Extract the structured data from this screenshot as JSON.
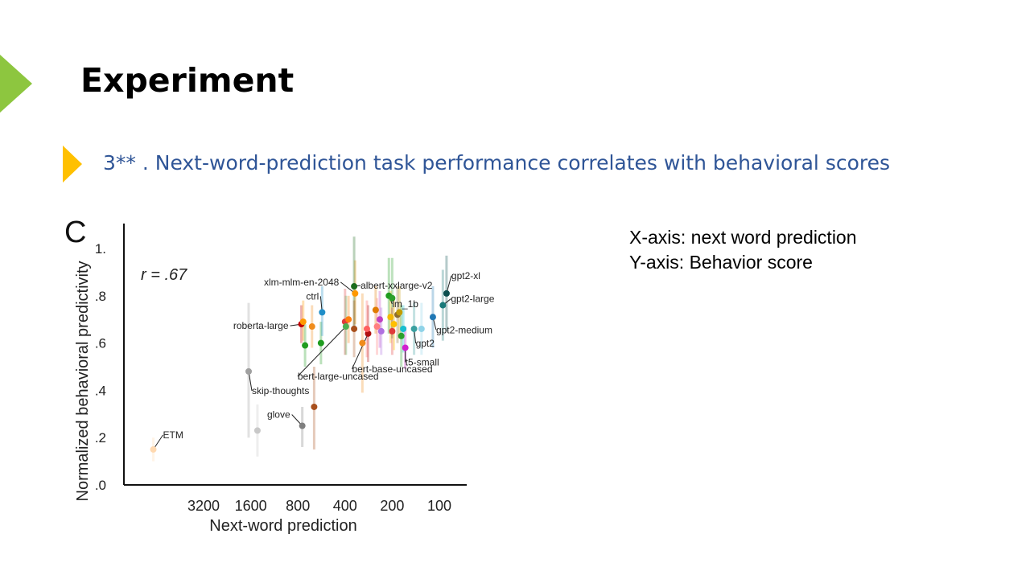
{
  "slide": {
    "title": "Experiment",
    "subtitle": "3** . Next-word-prediction task performance correlates with behavioral scores",
    "notes": [
      "X-axis: next word prediction",
      "Y-axis: Behavior score"
    ],
    "colors": {
      "marker_green": "#8dc63f",
      "bullet_yellow": "#ffc000",
      "subtitle_blue": "#2f5597"
    }
  },
  "chart_data": {
    "type": "scatter",
    "panel_label": "C",
    "annotation": "r = .67",
    "xlabel": "Next-word prediction",
    "ylabel": "Normalized behavioral predictivity",
    "x_scale": "log-reversed",
    "x_ticks": [
      3200,
      1600,
      800,
      400,
      200,
      100
    ],
    "x_tick_labels": [
      "3200",
      "1600",
      "800",
      "400",
      "200",
      "100"
    ],
    "ylim": [
      0,
      1.05
    ],
    "y_ticks": [
      0,
      0.2,
      0.4,
      0.6,
      0.8,
      1.0
    ],
    "y_tick_labels": [
      ".0",
      ".2",
      ".4",
      ".6",
      ".8",
      "1."
    ],
    "grid": false,
    "points": [
      {
        "name": "ETM",
        "x": 6700,
        "y": 0.15,
        "color": "#ffd9b0",
        "err": [
          0.1,
          0.2
        ]
      },
      {
        "name": "skip-thoughts",
        "x": 1650,
        "y": 0.48,
        "color": "#a0a0a0",
        "err": [
          0.2,
          0.77
        ]
      },
      {
        "name": "",
        "x": 1450,
        "y": 0.23,
        "color": "#c8c8c8",
        "err": [
          0.12,
          0.34
        ]
      },
      {
        "name": "glove",
        "x": 750,
        "y": 0.25,
        "color": "#7f7f7f",
        "err": [
          0.16,
          0.33
        ]
      },
      {
        "name": "",
        "x": 630,
        "y": 0.33,
        "color": "#a84f1c",
        "err": [
          0.15,
          0.5
        ]
      },
      {
        "name": "roberta-large",
        "x": 760,
        "y": 0.68,
        "color": "#c00000",
        "err": [
          0.6,
          0.76
        ]
      },
      {
        "name": "",
        "x": 740,
        "y": 0.69,
        "color": "#ff9900",
        "err": [
          0.61,
          0.78
        ]
      },
      {
        "name": "",
        "x": 720,
        "y": 0.59,
        "color": "#1f9c1f",
        "err": [
          0.5,
          0.68
        ]
      },
      {
        "name": "",
        "x": 650,
        "y": 0.67,
        "color": "#f08c1c",
        "err": [
          0.58,
          0.76
        ]
      },
      {
        "name": "",
        "x": 570,
        "y": 0.6,
        "color": "#1f9c1f",
        "err": [
          0.51,
          0.69
        ]
      },
      {
        "name": "ctrl",
        "x": 560,
        "y": 0.73,
        "color": "#1f8ec8",
        "err": [
          0.63,
          0.84
        ]
      },
      {
        "name": "",
        "x": 400,
        "y": 0.69,
        "color": "#e03a3a",
        "err": [
          0.55,
          0.83
        ]
      },
      {
        "name": "bert-large-uncased",
        "x": 395,
        "y": 0.67,
        "color": "#4caf50",
        "err": [
          0.55,
          0.8
        ]
      },
      {
        "name": "",
        "x": 380,
        "y": 0.7,
        "color": "#ff7f0e",
        "err": [
          0.6,
          0.8
        ]
      },
      {
        "name": "xlm-mlm-en-2048",
        "x": 345,
        "y": 0.81,
        "color": "#ff9900",
        "err": [
          0.68,
          0.95
        ]
      },
      {
        "name": "albert-xxlarge-v2",
        "x": 350,
        "y": 0.84,
        "color": "#1b6b1b",
        "err": [
          0.65,
          1.05
        ]
      },
      {
        "name": "",
        "x": 350,
        "y": 0.66,
        "color": "#a84f1c",
        "err": [
          0.54,
          0.78
        ]
      },
      {
        "name": "",
        "x": 310,
        "y": 0.6,
        "color": "#f08c1c",
        "err": [
          0.39,
          0.81
        ]
      },
      {
        "name": "bert-base-uncased",
        "x": 285,
        "y": 0.64,
        "color": "#b01010",
        "err": [
          0.52,
          0.76
        ]
      },
      {
        "name": "",
        "x": 290,
        "y": 0.66,
        "color": "#ff6060",
        "err": [
          0.54,
          0.78
        ]
      },
      {
        "name": "",
        "x": 255,
        "y": 0.74,
        "color": "#e07b00",
        "err": [
          0.64,
          0.84
        ]
      },
      {
        "name": "",
        "x": 250,
        "y": 0.67,
        "color": "#ff7f7f",
        "err": [
          0.55,
          0.79
        ]
      },
      {
        "name": "",
        "x": 240,
        "y": 0.7,
        "color": "#c040c0",
        "err": [
          0.58,
          0.82
        ]
      },
      {
        "name": "",
        "x": 235,
        "y": 0.65,
        "color": "#b070e0",
        "err": [
          0.55,
          0.75
        ]
      },
      {
        "name": "lm_1b",
        "x": 210,
        "y": 0.8,
        "color": "#1f9c1f",
        "err": [
          0.64,
          0.96
        ]
      },
      {
        "name": "",
        "x": 200,
        "y": 0.79,
        "color": "#2ca02c",
        "err": [
          0.62,
          0.96
        ]
      },
      {
        "name": "",
        "x": 205,
        "y": 0.71,
        "color": "#f5b800",
        "err": [
          0.6,
          0.82
        ]
      },
      {
        "name": "",
        "x": 200,
        "y": 0.65,
        "color": "#e03a3a",
        "err": [
          0.55,
          0.75
        ]
      },
      {
        "name": "",
        "x": 195,
        "y": 0.68,
        "color": "#ffbf00",
        "err": [
          0.57,
          0.79
        ]
      },
      {
        "name": "",
        "x": 185,
        "y": 0.72,
        "color": "#8c6d31",
        "err": [
          0.6,
          0.84
        ]
      },
      {
        "name": "",
        "x": 180,
        "y": 0.73,
        "color": "#c49c00",
        "err": [
          0.62,
          0.84
        ]
      },
      {
        "name": "",
        "x": 175,
        "y": 0.63,
        "color": "#2ca02c",
        "err": [
          0.5,
          0.76
        ]
      },
      {
        "name": "",
        "x": 170,
        "y": 0.66,
        "color": "#17becf",
        "err": [
          0.56,
          0.76
        ]
      },
      {
        "name": "t5-small",
        "x": 165,
        "y": 0.58,
        "color": "#d020d0",
        "err": [
          0.49,
          0.67
        ]
      },
      {
        "name": "gpt2",
        "x": 145,
        "y": 0.66,
        "color": "#3aa0a0",
        "err": [
          0.55,
          0.77
        ]
      },
      {
        "name": "",
        "x": 130,
        "y": 0.66,
        "color": "#8fd3e8",
        "err": [
          0.55,
          0.77
        ]
      },
      {
        "name": "gpt2-medium",
        "x": 110,
        "y": 0.71,
        "color": "#1f77b4",
        "err": [
          0.58,
          0.84
        ]
      },
      {
        "name": "gpt2-large",
        "x": 95,
        "y": 0.76,
        "color": "#1a7a7a",
        "err": [
          0.61,
          0.91
        ]
      },
      {
        "name": "gpt2-xl",
        "x": 90,
        "y": 0.81,
        "color": "#0b4f4f",
        "err": [
          0.65,
          0.97
        ]
      }
    ]
  }
}
